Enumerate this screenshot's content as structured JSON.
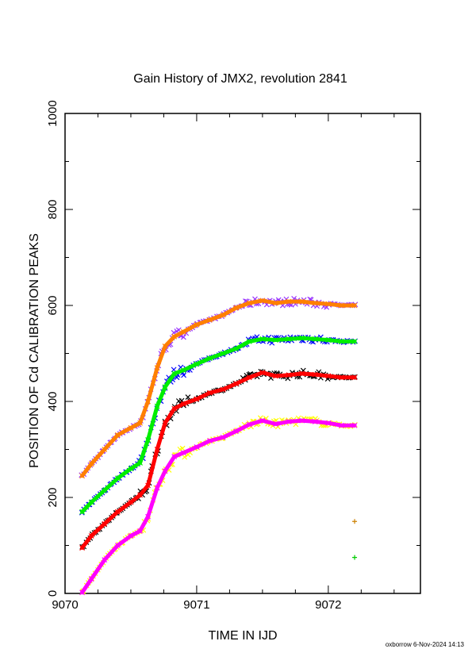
{
  "chart_data": {
    "type": "line",
    "title": "Gain History of JMX2, revolution 2841",
    "xlabel": "TIME IN IJD",
    "ylabel": "POSITION OF Cd CALIBRATION PEAKS",
    "xlim": [
      9070.0,
      9072.7
    ],
    "ylim": [
      0,
      1000
    ],
    "xticks": [
      9070,
      9071,
      9072
    ],
    "yticks": [
      0,
      200,
      400,
      600,
      800,
      1000
    ],
    "x_tick_labels": [
      "9070",
      "9071",
      "9072"
    ],
    "y_tick_labels": [
      "0",
      "200",
      "400",
      "600",
      "800",
      "1000"
    ],
    "grid": false,
    "series": [
      {
        "color": "#ff8000",
        "scatter_color": "#9933ff",
        "x": [
          9070.13,
          9070.2,
          9070.3,
          9070.4,
          9070.5,
          9070.57,
          9070.63,
          9070.7,
          9070.76,
          9070.83,
          9070.9,
          9071.0,
          9071.1,
          9071.2,
          9071.3,
          9071.4,
          9071.5,
          9071.6,
          9071.7,
          9071.8,
          9071.9,
          9072.0,
          9072.1,
          9072.2
        ],
        "y": [
          245,
          270,
          300,
          330,
          345,
          355,
          400,
          470,
          515,
          535,
          545,
          560,
          570,
          580,
          595,
          605,
          610,
          605,
          608,
          608,
          605,
          603,
          600,
          600
        ]
      },
      {
        "color": "#00ee00",
        "scatter_color": "#0000ff",
        "x": [
          9070.13,
          9070.2,
          9070.3,
          9070.4,
          9070.5,
          9070.57,
          9070.63,
          9070.7,
          9070.76,
          9070.83,
          9070.9,
          9071.0,
          9071.1,
          9071.2,
          9071.3,
          9071.4,
          9071.5,
          9071.6,
          9071.7,
          9071.8,
          9071.9,
          9072.0,
          9072.1,
          9072.2
        ],
        "y": [
          170,
          190,
          215,
          240,
          260,
          272,
          320,
          390,
          430,
          458,
          465,
          478,
          490,
          500,
          510,
          525,
          530,
          528,
          530,
          532,
          530,
          528,
          525,
          525
        ]
      },
      {
        "color": "#ff0000",
        "scatter_color": "#000000",
        "x": [
          9070.13,
          9070.2,
          9070.3,
          9070.4,
          9070.5,
          9070.57,
          9070.63,
          9070.7,
          9070.76,
          9070.83,
          9070.9,
          9071.0,
          9071.1,
          9071.2,
          9071.3,
          9071.4,
          9071.5,
          9071.6,
          9071.7,
          9071.8,
          9071.9,
          9072.0,
          9072.1,
          9072.2
        ],
        "y": [
          95,
          120,
          145,
          170,
          190,
          205,
          225,
          300,
          355,
          385,
          395,
          405,
          418,
          425,
          437,
          450,
          460,
          453,
          455,
          458,
          456,
          453,
          450,
          450
        ]
      },
      {
        "color": "#ff00ff",
        "scatter_color": "#ffff00",
        "x": [
          9070.13,
          9070.2,
          9070.3,
          9070.4,
          9070.5,
          9070.57,
          9070.63,
          9070.7,
          9070.76,
          9070.83,
          9070.9,
          9071.0,
          9071.1,
          9071.2,
          9071.3,
          9071.4,
          9071.5,
          9071.6,
          9071.7,
          9071.8,
          9071.9,
          9072.0,
          9072.1,
          9072.2
        ],
        "y": [
          2,
          30,
          70,
          100,
          120,
          130,
          160,
          220,
          255,
          285,
          293,
          305,
          318,
          325,
          338,
          352,
          360,
          353,
          358,
          360,
          358,
          355,
          350,
          350
        ]
      }
    ],
    "isolated_markers": [
      {
        "x": 9072.2,
        "y": 150,
        "color": "#cc8000"
      },
      {
        "x": 9072.2,
        "y": 75,
        "color": "#00cc00"
      }
    ]
  },
  "footer": "oxborrow  6-Nov-2024 14:13"
}
